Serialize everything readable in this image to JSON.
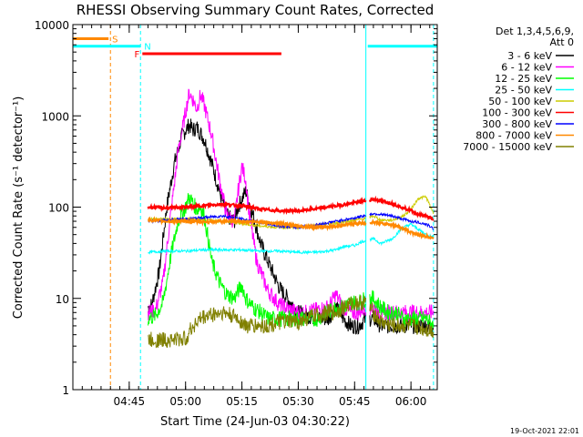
{
  "chart_data": {
    "type": "line",
    "title": "RHESSI Observing Summary Count Rates, Corrected",
    "xlabel": "Start Time (24-Jun-03 04:30:22)",
    "ylabel": "Corrected Count Rate (s⁻¹ detector⁻¹)",
    "yscale": "log",
    "ylim": [
      1,
      10000
    ],
    "xlim_minutes": [
      0,
      97
    ],
    "x_ticks": [
      {
        "t": 15,
        "label": "04:45"
      },
      {
        "t": 30,
        "label": "05:00"
      },
      {
        "t": 45,
        "label": "05:15"
      },
      {
        "t": 60,
        "label": "05:30"
      },
      {
        "t": 75,
        "label": "05:45"
      },
      {
        "t": 90,
        "label": "06:00"
      }
    ],
    "y_ticks": [
      {
        "v": 1,
        "label": "1"
      },
      {
        "v": 10,
        "label": "10"
      },
      {
        "v": 100,
        "label": "100"
      },
      {
        "v": 1000,
        "label": "1000"
      },
      {
        "v": 10000,
        "label": "10000"
      }
    ],
    "legend_header": [
      "Det 1,3,4,5,6,9,",
      "Att 0"
    ],
    "series": [
      {
        "name": "3 - 6 keV",
        "color": "#000000",
        "x": [
          20,
          21,
          23,
          25,
          27,
          29,
          31,
          32,
          33,
          35,
          37,
          39,
          41,
          43,
          44,
          46,
          48,
          50,
          52,
          55,
          58,
          60,
          62,
          65,
          68,
          70,
          72,
          74,
          76,
          78,
          80,
          82,
          84,
          86,
          88,
          90,
          92,
          94,
          96
        ],
        "y": [
          8,
          8.5,
          20,
          100,
          300,
          600,
          800,
          700,
          750,
          550,
          300,
          150,
          80,
          70,
          100,
          150,
          80,
          40,
          25,
          13,
          9,
          7,
          6.5,
          6,
          6,
          8,
          6,
          5,
          5,
          6,
          6,
          5,
          5,
          5,
          5,
          5,
          5,
          5,
          5
        ]
      },
      {
        "name": "6 - 12 keV",
        "color": "#ff00ff",
        "x": [
          20,
          22,
          24,
          26,
          28,
          30,
          31,
          32,
          33,
          34,
          35,
          37,
          39,
          41,
          43,
          44,
          45,
          46,
          47,
          49,
          52,
          55,
          58,
          60,
          62,
          65,
          68,
          70,
          72,
          74,
          76,
          78,
          80,
          82,
          85,
          88,
          90,
          92,
          94,
          96
        ],
        "y": [
          7,
          7.5,
          15,
          80,
          400,
          1100,
          1800,
          1500,
          1200,
          1700,
          1300,
          600,
          200,
          80,
          70,
          150,
          280,
          200,
          80,
          25,
          12,
          8.5,
          7.5,
          7,
          7,
          7.5,
          8,
          11,
          8,
          7,
          7,
          8,
          8,
          7,
          7,
          7,
          7,
          7,
          7,
          7
        ]
      },
      {
        "name": "12 - 25 keV",
        "color": "#00ff00",
        "x": [
          20,
          22,
          24,
          26,
          28,
          30,
          31,
          32,
          33,
          34,
          35,
          37,
          39,
          41,
          43,
          44,
          45,
          46,
          48,
          50,
          52,
          55,
          58,
          60,
          62,
          65,
          68,
          70,
          72,
          74,
          76,
          78,
          80,
          82,
          84,
          86,
          88,
          90,
          92,
          94,
          96
        ],
        "y": [
          6,
          6.5,
          9,
          28,
          70,
          100,
          130,
          110,
          95,
          100,
          80,
          25,
          15,
          11,
          10,
          12,
          14,
          10,
          8,
          7,
          6,
          6,
          6,
          6,
          6,
          6,
          7,
          8,
          8,
          9,
          9,
          10,
          10,
          8,
          7,
          7,
          6,
          6,
          6,
          6,
          5
        ]
      },
      {
        "name": "25 - 50 keV",
        "color": "#00ffff",
        "x": [
          20,
          25,
          30,
          35,
          40,
          45,
          50,
          55,
          60,
          65,
          70,
          72,
          75,
          77,
          80,
          82,
          85,
          87,
          88,
          90,
          92,
          94,
          96
        ],
        "y": [
          32,
          33,
          33,
          34,
          34,
          34,
          33,
          33,
          32,
          32,
          34,
          37,
          38,
          42,
          45,
          40,
          45,
          55,
          60,
          65,
          57,
          50,
          47
        ]
      },
      {
        "name": "50 - 100 keV",
        "color": "#cccc00",
        "x": [
          20,
          25,
          30,
          35,
          40,
          45,
          50,
          55,
          60,
          65,
          70,
          75,
          78,
          80,
          82,
          85,
          88,
          90,
          92,
          94,
          96
        ],
        "y": [
          75,
          74,
          74,
          72,
          70,
          66,
          62,
          60,
          60,
          63,
          67,
          72,
          75,
          80,
          72,
          72,
          80,
          95,
          125,
          130,
          85
        ]
      },
      {
        "name": "100 - 300 keV",
        "color": "#ff0000",
        "x": [
          20,
          25,
          30,
          35,
          40,
          45,
          50,
          55,
          60,
          65,
          70,
          75,
          80,
          85,
          88,
          90,
          92,
          94,
          96
        ],
        "y": [
          100,
          98,
          100,
          104,
          108,
          103,
          95,
          91,
          91,
          96,
          103,
          112,
          122,
          110,
          98,
          92,
          83,
          80,
          73
        ]
      },
      {
        "name": "300 - 800 keV",
        "color": "#0000ff",
        "x": [
          20,
          25,
          30,
          35,
          40,
          45,
          50,
          55,
          60,
          65,
          70,
          75,
          80,
          85,
          90,
          92,
          94,
          96
        ],
        "y": [
          70,
          72,
          74,
          77,
          80,
          74,
          68,
          62,
          60,
          64,
          70,
          76,
          85,
          80,
          70,
          68,
          65,
          58
        ]
      },
      {
        "name": "800 - 7000 keV",
        "color": "#ff8800",
        "x": [
          20,
          25,
          30,
          35,
          40,
          45,
          50,
          55,
          60,
          65,
          70,
          75,
          80,
          85,
          88,
          90,
          92,
          94,
          96
        ],
        "y": [
          72,
          70,
          70,
          69,
          70,
          70,
          69,
          66,
          62,
          60,
          62,
          66,
          68,
          64,
          58,
          53,
          50,
          48,
          46
        ]
      },
      {
        "name": "7000 - 15000 keV",
        "color": "#808000",
        "x": [
          20,
          25,
          30,
          32,
          34,
          36,
          38,
          40,
          42,
          44,
          46,
          48,
          50,
          52,
          55,
          58,
          60,
          62,
          65,
          68,
          70,
          72,
          75,
          78,
          80,
          82,
          85,
          88,
          90,
          92,
          94,
          96
        ],
        "y": [
          3.5,
          3.5,
          3.6,
          5,
          6,
          6.5,
          6.8,
          7,
          6.5,
          6,
          5,
          5,
          5,
          5,
          5.5,
          5.5,
          5.5,
          6,
          6.5,
          7,
          7,
          8,
          9,
          9,
          7,
          5.5,
          5,
          5,
          5,
          4.8,
          4.6,
          4.4
        ]
      }
    ],
    "flag_bars": [
      {
        "label": "S",
        "color": "#ff8800",
        "t0": 0,
        "t1": 9.5,
        "value": 7000
      },
      {
        "label": "N",
        "color": "#00ffff",
        "t0": 0,
        "t1": 18,
        "value": 5800
      },
      {
        "label": "N",
        "color": "#00ffff",
        "t0": 78.5,
        "t1": 97,
        "value": 5800
      },
      {
        "label": "F",
        "color": "#ff0000",
        "t0": 18.5,
        "t1": 55.5,
        "value": 4800
      }
    ],
    "flag_labels": {
      "S": "S",
      "N": "N",
      "F": "F"
    },
    "vertical_lines": [
      {
        "t": 10,
        "color": "#ff8800",
        "style": "dashed"
      },
      {
        "t": 18,
        "color": "#00ffff",
        "style": "dashed"
      },
      {
        "t": 78,
        "color": "#00ffff",
        "style": "solid"
      },
      {
        "t": 96,
        "color": "#00ffff",
        "style": "dashed"
      }
    ],
    "data_gap": {
      "t0": 78,
      "t1": 79
    },
    "footer_timestamp": "19-Oct-2021 22:01"
  }
}
